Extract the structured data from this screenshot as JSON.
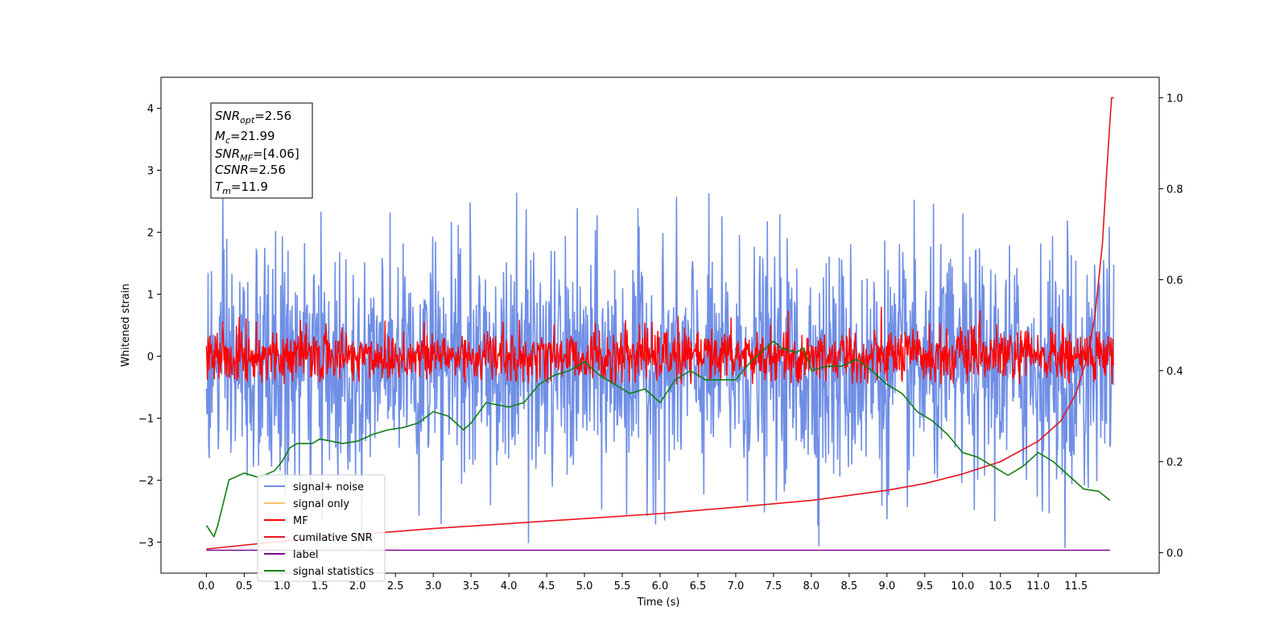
{
  "chart_data": {
    "type": "line",
    "title": "",
    "xlabel": "Time (s)",
    "ylabel": "Whitened strain",
    "xlim": [
      -0.6,
      12.6
    ],
    "ylim": [
      -3.5,
      4.5
    ],
    "ylim_right": [
      -0.045,
      1.045
    ],
    "x_ticks": [
      0.0,
      0.5,
      1.0,
      1.5,
      2.0,
      2.5,
      3.0,
      3.5,
      4.0,
      4.5,
      5.0,
      5.5,
      6.0,
      6.5,
      7.0,
      7.5,
      8.0,
      8.5,
      9.0,
      9.5,
      10.0,
      10.5,
      11.0,
      11.5
    ],
    "x_tick_labels": [
      "0.0",
      "0.5",
      "1.0",
      "1.5",
      "2.0",
      "2.5",
      "3.0",
      "3.5",
      "4.0",
      "4.5",
      "5.0",
      "5.5",
      "6.0",
      "6.5",
      "7.0",
      "7.5",
      "8.0",
      "8.5",
      "9.0",
      "9.5",
      "10.0",
      "10.5",
      "11.0",
      "11.5"
    ],
    "y_ticks": [
      -3,
      -2,
      -1,
      0,
      1,
      2,
      3,
      4
    ],
    "y_tick_labels": [
      "−3",
      "−2",
      "−1",
      "0",
      "1",
      "2",
      "3",
      "4"
    ],
    "y2_ticks": [
      0.0,
      0.2,
      0.4,
      0.6,
      0.8,
      1.0
    ],
    "y2_tick_labels": [
      "0.0",
      "0.2",
      "0.4",
      "0.6",
      "0.8",
      "1.0"
    ],
    "grid": false,
    "legend_position": "lower-left",
    "series": [
      {
        "name": "signal+ noise",
        "axis": "left",
        "color": "#6f8fe6",
        "kind": "noise",
        "x_range": [
          0.0,
          12.0
        ],
        "center": -0.2,
        "sigma": 0.95,
        "clip": [
          -3.1,
          4.15
        ]
      },
      {
        "name": "signal only",
        "axis": "left",
        "color": "#f5c26b",
        "kind": "flat",
        "x_range": [
          0.0,
          12.0
        ],
        "value": 0.0
      },
      {
        "name": "MF",
        "axis": "left",
        "color": "#ff0000",
        "kind": "noise",
        "x_range": [
          0.0,
          12.0
        ],
        "center": 0.0,
        "sigma": 0.22,
        "clip": [
          -0.45,
          1.0
        ]
      },
      {
        "name": "cumilative SNR",
        "axis": "right",
        "color": "#e8141c",
        "kind": "line",
        "x": [
          0.0,
          1.0,
          2.0,
          3.0,
          4.0,
          5.0,
          6.0,
          7.0,
          8.0,
          9.0,
          9.5,
          10.0,
          10.5,
          11.0,
          11.3,
          11.5,
          11.65,
          11.75,
          11.85,
          11.9,
          11.95,
          11.97,
          12.0
        ],
        "y": [
          0.008,
          0.025,
          0.04,
          0.053,
          0.064,
          0.075,
          0.086,
          0.1,
          0.115,
          0.137,
          0.152,
          0.173,
          0.2,
          0.245,
          0.29,
          0.35,
          0.43,
          0.52,
          0.68,
          0.82,
          0.95,
          1.0,
          1.0
        ]
      },
      {
        "name": "label",
        "axis": "left",
        "color": "#7b0a8c",
        "kind": "line",
        "x": [
          0.0,
          11.95
        ],
        "y": [
          -3.13,
          -3.13
        ]
      },
      {
        "name": "signal statistics",
        "axis": "right",
        "color": "#0f7f12",
        "kind": "line",
        "x": [
          0.0,
          0.1,
          0.15,
          0.3,
          0.5,
          0.7,
          0.9,
          1.0,
          1.1,
          1.2,
          1.4,
          1.5,
          1.8,
          2.0,
          2.2,
          2.4,
          2.6,
          2.8,
          3.0,
          3.2,
          3.4,
          3.5,
          3.7,
          4.0,
          4.2,
          4.4,
          4.6,
          4.8,
          5.0,
          5.2,
          5.4,
          5.6,
          5.8,
          6.0,
          6.2,
          6.4,
          6.6,
          6.8,
          7.0,
          7.2,
          7.4,
          7.5,
          7.6,
          7.8,
          7.9,
          8.0,
          8.2,
          8.4,
          8.6,
          8.8,
          9.0,
          9.2,
          9.4,
          9.6,
          9.8,
          10.0,
          10.2,
          10.4,
          10.5,
          10.6,
          10.8,
          11.0,
          11.2,
          11.4,
          11.6,
          11.8,
          11.95
        ],
        "y": [
          0.06,
          0.035,
          0.06,
          0.16,
          0.175,
          0.165,
          0.18,
          0.2,
          0.23,
          0.24,
          0.24,
          0.25,
          0.24,
          0.245,
          0.26,
          0.27,
          0.275,
          0.285,
          0.31,
          0.3,
          0.27,
          0.285,
          0.33,
          0.32,
          0.33,
          0.37,
          0.39,
          0.4,
          0.42,
          0.39,
          0.37,
          0.35,
          0.36,
          0.33,
          0.38,
          0.4,
          0.38,
          0.38,
          0.38,
          0.42,
          0.45,
          0.465,
          0.45,
          0.44,
          0.45,
          0.4,
          0.41,
          0.41,
          0.425,
          0.4,
          0.37,
          0.35,
          0.31,
          0.29,
          0.26,
          0.22,
          0.21,
          0.19,
          0.18,
          0.17,
          0.19,
          0.22,
          0.2,
          0.17,
          0.14,
          0.135,
          0.115
        ]
      }
    ]
  },
  "stats_box": {
    "line1_name": "SNR",
    "line1_sub": "opt",
    "line1_value": "=2.56",
    "line2_name": "M",
    "line2_sub": "c",
    "line2_value": "=21.99",
    "line3_name": "SNR",
    "line3_sub": "MF",
    "line3_value": "=[4.06]",
    "line4_name": "CSNR",
    "line4_value": "=2.56",
    "line5_name": "T",
    "line5_sub": "m",
    "line5_value": "=11.9"
  }
}
